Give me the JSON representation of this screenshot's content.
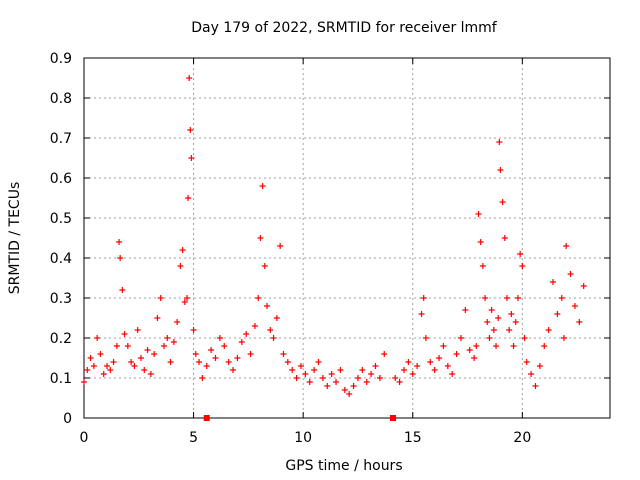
{
  "chart_data": {
    "type": "scatter",
    "title": "Day 179 of 2022, SRMTID for receiver lmmf",
    "xlabel": "GPS time / hours",
    "ylabel": "SRMTID / TECUs",
    "xlim": [
      0,
      24
    ],
    "ylim": [
      0,
      0.9
    ],
    "xticks": [
      0,
      5,
      10,
      15,
      20
    ],
    "yticks": [
      0,
      0.1,
      0.2,
      0.3,
      0.4,
      0.5,
      0.6,
      0.7,
      0.8,
      0.9
    ],
    "ytick_labels": [
      "0",
      "0.1",
      "0.2",
      "0.3",
      "0.4",
      "0.5",
      "0.6",
      "0.7",
      "0.8",
      "0.9"
    ],
    "grid": true,
    "marker": "plus",
    "series": [
      {
        "name": "SRMTID",
        "color": "#ff0000",
        "x": [
          0.0,
          0.15,
          0.3,
          0.45,
          0.6,
          0.75,
          0.9,
          1.05,
          1.2,
          1.35,
          1.5,
          1.6,
          1.65,
          1.75,
          1.85,
          2.0,
          2.15,
          2.3,
          2.45,
          2.6,
          2.75,
          2.9,
          3.05,
          3.2,
          3.35,
          3.5,
          3.65,
          3.8,
          3.95,
          4.1,
          4.25,
          4.4,
          4.5,
          4.6,
          4.7,
          4.75,
          4.8,
          4.85,
          4.9,
          5.0,
          5.1,
          5.25,
          5.4,
          5.6,
          5.8,
          6.0,
          6.2,
          6.4,
          6.6,
          6.8,
          7.0,
          7.2,
          7.4,
          7.6,
          7.8,
          7.95,
          8.05,
          8.15,
          8.25,
          8.35,
          8.5,
          8.65,
          8.8,
          8.95,
          9.1,
          9.3,
          9.5,
          9.7,
          9.9,
          10.1,
          10.3,
          10.5,
          10.7,
          10.9,
          11.1,
          11.3,
          11.5,
          11.7,
          11.9,
          12.1,
          12.3,
          12.5,
          12.7,
          12.9,
          13.1,
          13.3,
          13.5,
          13.7,
          14.2,
          14.4,
          14.6,
          14.8,
          15.0,
          15.2,
          15.4,
          15.5,
          15.6,
          15.8,
          16.0,
          16.2,
          16.4,
          16.6,
          16.8,
          17.0,
          17.2,
          17.4,
          17.6,
          17.8,
          17.9,
          18.0,
          18.1,
          18.2,
          18.3,
          18.4,
          18.5,
          18.6,
          18.7,
          18.8,
          18.9,
          18.95,
          19.0,
          19.1,
          19.2,
          19.3,
          19.4,
          19.5,
          19.6,
          19.7,
          19.8,
          19.9,
          20.0,
          20.1,
          20.2,
          20.4,
          20.6,
          20.8,
          21.0,
          21.2,
          21.4,
          21.6,
          21.8,
          21.9,
          22.0,
          22.2,
          22.4,
          22.6,
          22.8
        ],
        "y": [
          0.09,
          0.12,
          0.15,
          0.13,
          0.2,
          0.16,
          0.11,
          0.13,
          0.12,
          0.14,
          0.18,
          0.44,
          0.4,
          0.32,
          0.21,
          0.18,
          0.14,
          0.13,
          0.22,
          0.15,
          0.12,
          0.17,
          0.11,
          0.16,
          0.25,
          0.3,
          0.18,
          0.2,
          0.14,
          0.19,
          0.24,
          0.38,
          0.42,
          0.29,
          0.3,
          0.55,
          0.85,
          0.72,
          0.65,
          0.22,
          0.16,
          0.14,
          0.1,
          0.13,
          0.17,
          0.15,
          0.2,
          0.18,
          0.14,
          0.12,
          0.15,
          0.19,
          0.21,
          0.16,
          0.23,
          0.3,
          0.45,
          0.58,
          0.38,
          0.28,
          0.22,
          0.2,
          0.25,
          0.43,
          0.16,
          0.14,
          0.12,
          0.1,
          0.13,
          0.11,
          0.09,
          0.12,
          0.14,
          0.1,
          0.08,
          0.11,
          0.09,
          0.12,
          0.07,
          0.06,
          0.08,
          0.1,
          0.12,
          0.09,
          0.11,
          0.13,
          0.1,
          0.16,
          0.1,
          0.09,
          0.12,
          0.14,
          0.11,
          0.13,
          0.26,
          0.3,
          0.2,
          0.14,
          0.12,
          0.15,
          0.18,
          0.13,
          0.11,
          0.16,
          0.2,
          0.27,
          0.17,
          0.15,
          0.18,
          0.51,
          0.44,
          0.38,
          0.3,
          0.24,
          0.2,
          0.27,
          0.22,
          0.18,
          0.25,
          0.69,
          0.62,
          0.54,
          0.45,
          0.3,
          0.22,
          0.26,
          0.18,
          0.24,
          0.3,
          0.41,
          0.38,
          0.2,
          0.14,
          0.11,
          0.08,
          0.13,
          0.18,
          0.22,
          0.34,
          0.26,
          0.3,
          0.2,
          0.43,
          0.36,
          0.28,
          0.24,
          0.33
        ]
      }
    ],
    "extra_markers": {
      "x": [
        5.6,
        14.1
      ],
      "y": [
        0,
        0
      ]
    }
  }
}
